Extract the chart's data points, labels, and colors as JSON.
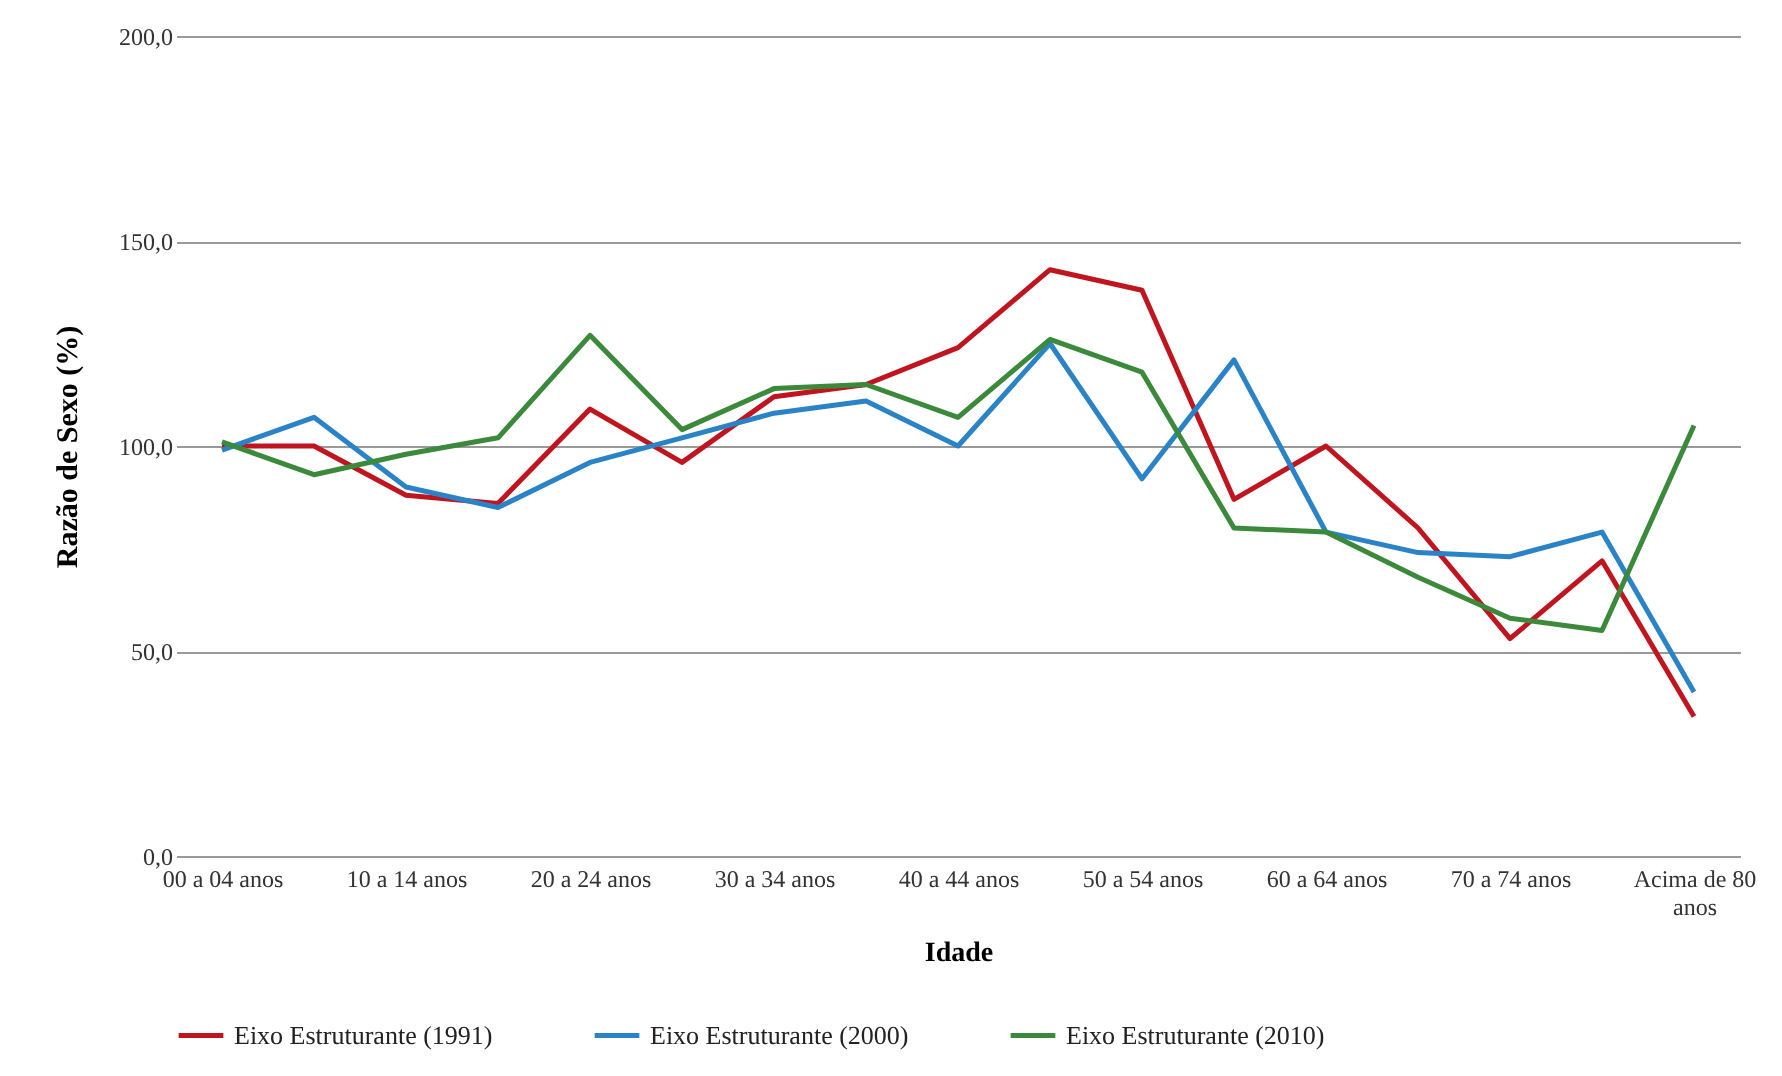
{
  "chart_data": {
    "type": "line",
    "xlabel": "Idade",
    "ylabel": "Razão de Sexo (%)",
    "categories": [
      "00 a 04 anos",
      null,
      "10 a 14 anos",
      null,
      "20 a 24 anos",
      null,
      "30 a 34 anos",
      null,
      "40 a 44 anos",
      null,
      "50 a 54 anos",
      null,
      "60 a 64 anos",
      null,
      "70 a 74 anos",
      null,
      "Acima de 80 anos"
    ],
    "series": [
      {
        "name": "Eixo Estruturante (1991)",
        "color": "#c0141e",
        "values": [
          100,
          100,
          88,
          86,
          109,
          96,
          112,
          115,
          124,
          143,
          138,
          87,
          100,
          80,
          53,
          72,
          34
        ]
      },
      {
        "name": "Eixo Estruturante (2000)",
        "color": "#2a83c6",
        "values": [
          99,
          107,
          90,
          85,
          96,
          102,
          108,
          111,
          100,
          125,
          92,
          121,
          79,
          74,
          73,
          79,
          40
        ]
      },
      {
        "name": "Eixo Estruturante (2010)",
        "color": "#3b8a3b",
        "values": [
          101,
          93,
          98,
          102,
          127,
          104,
          114,
          115,
          107,
          126,
          118,
          80,
          79,
          68,
          58,
          55,
          105
        ]
      }
    ],
    "ylim": [
      0,
      200
    ],
    "yticks": [
      {
        "value": 0,
        "label": "0,0"
      },
      {
        "value": 50,
        "label": "50,0"
      },
      {
        "value": 100,
        "label": "100,0"
      },
      {
        "value": 150,
        "label": "150,0"
      },
      {
        "value": 200,
        "label": "200,0"
      }
    ],
    "grid": "y",
    "legend": "bottom",
    "marker": "none",
    "line_style": "solid"
  }
}
